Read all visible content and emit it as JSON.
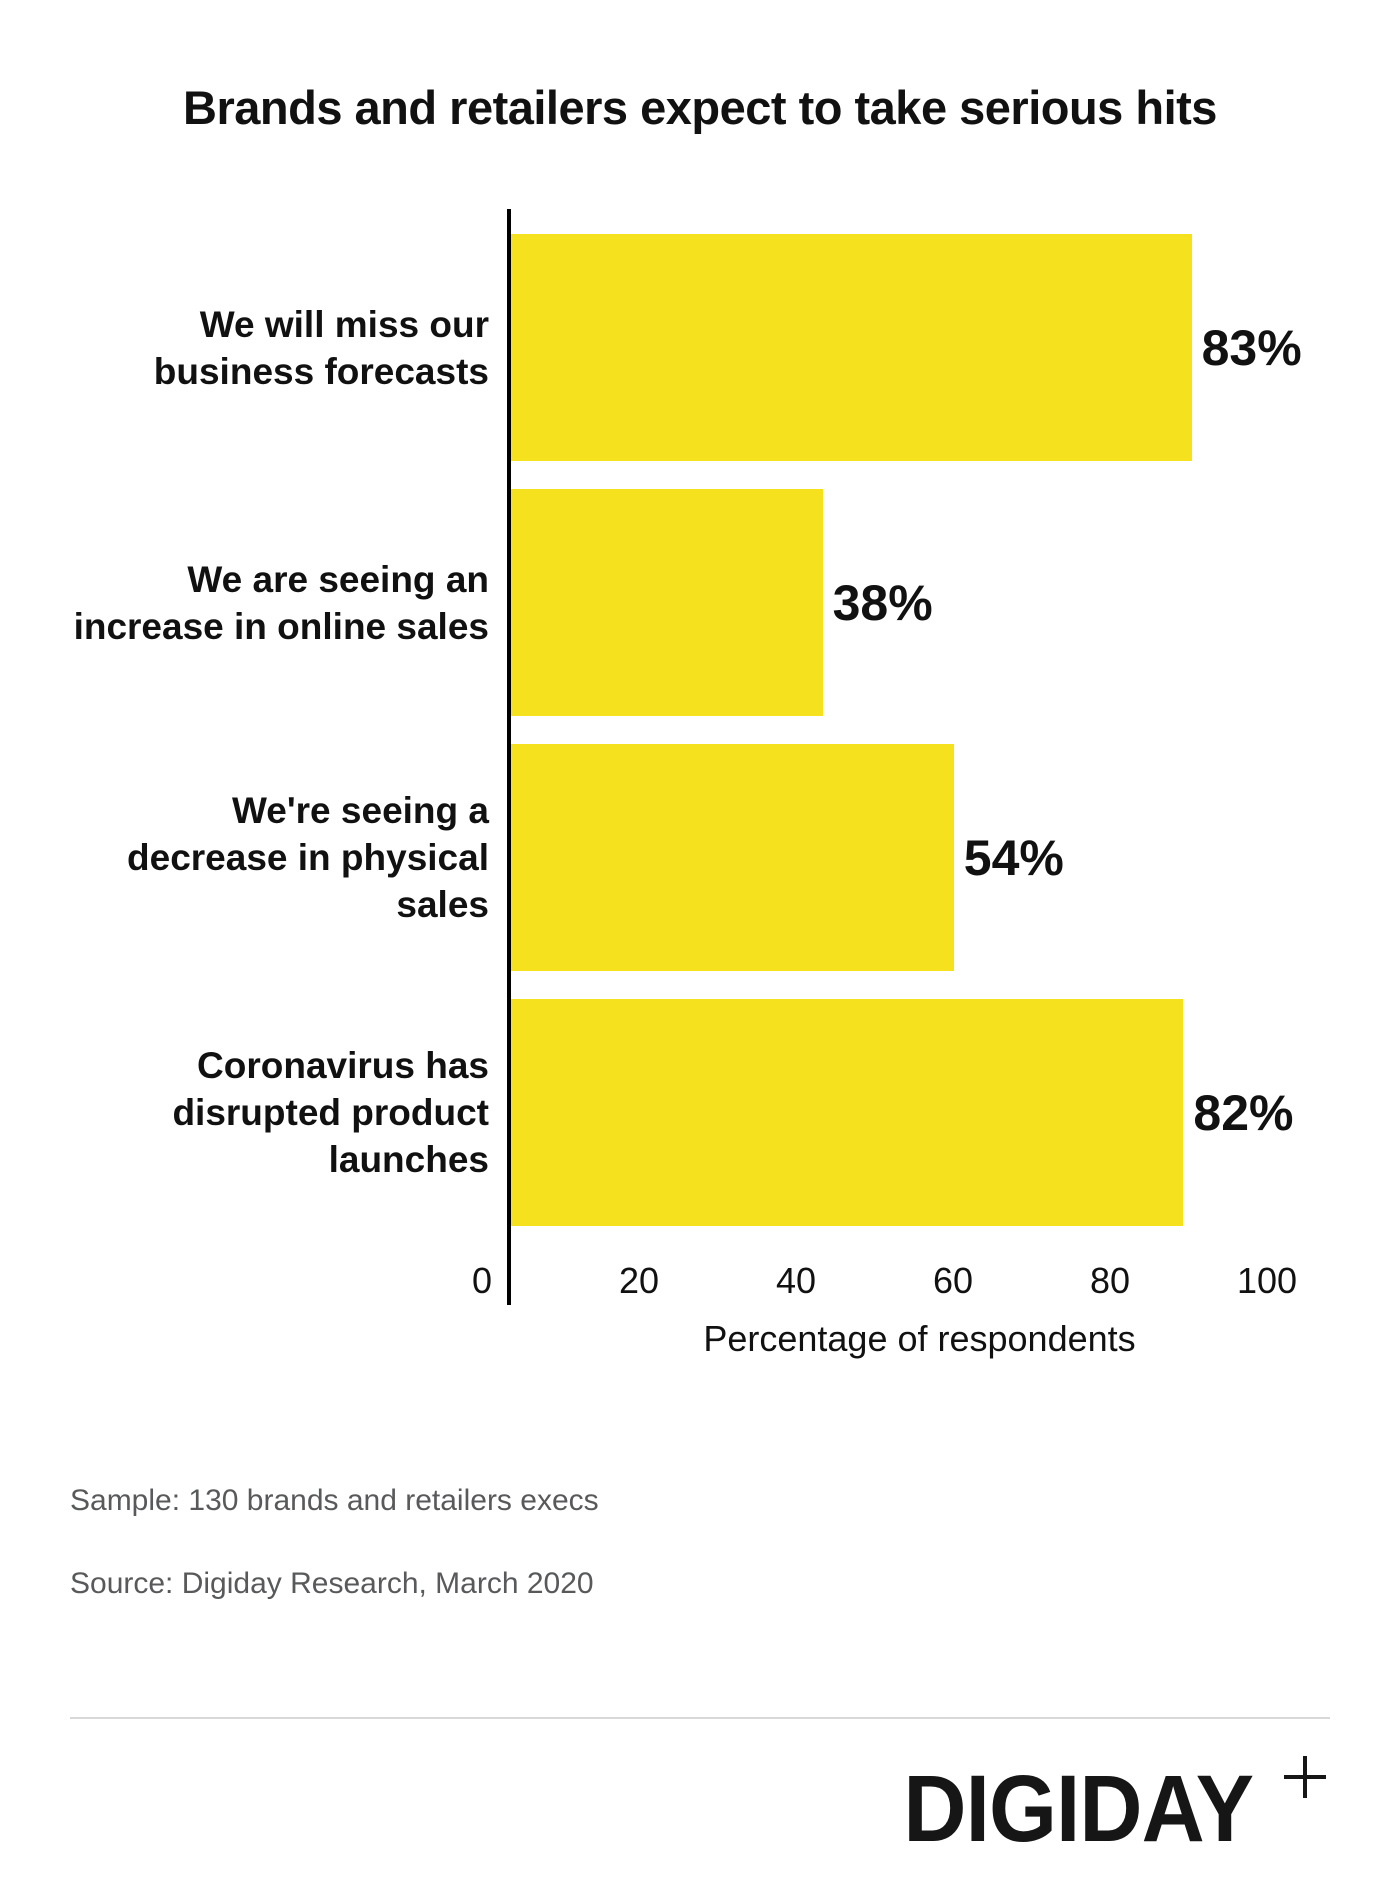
{
  "page": {
    "title": "Brands and retailers expect to take serious hits",
    "notes": {
      "sample": "Sample: 130 brands and retailers execs",
      "source": "Source: Digiday Research, March 2020"
    },
    "logo": {
      "text": "DIGIDAY",
      "plus": "+"
    },
    "colors": {
      "bar": "#F5E11E",
      "text": "#111111",
      "muted": "#58595B",
      "divider": "#D8D8D8",
      "axis": "#000000"
    }
  },
  "chart_data": {
    "type": "bar",
    "orientation": "horizontal",
    "title": "Brands and retailers expect to take serious hits",
    "categories": [
      "We will miss our business forecasts",
      "We are seeing an increase in online sales",
      "We're seeing a decrease in physical sales",
      "Coronavirus has disrupted product launches"
    ],
    "category_lines": [
      [
        "We will miss our",
        "business forecasts"
      ],
      [
        "We are seeing an",
        "increase in online sales"
      ],
      [
        "We're seeing a",
        "decrease in physical",
        "sales"
      ],
      [
        "Coronavirus has",
        "disrupted product",
        "launches"
      ]
    ],
    "values": [
      83,
      38,
      54,
      82
    ],
    "value_labels": [
      "83%",
      "38%",
      "54%",
      "82%"
    ],
    "xlabel": "Percentage of respondents",
    "xticks": [
      0,
      20,
      40,
      60,
      80,
      100
    ],
    "xlim": [
      0,
      100
    ],
    "grid": false,
    "legend": null,
    "bar_color": "#F5E11E"
  }
}
